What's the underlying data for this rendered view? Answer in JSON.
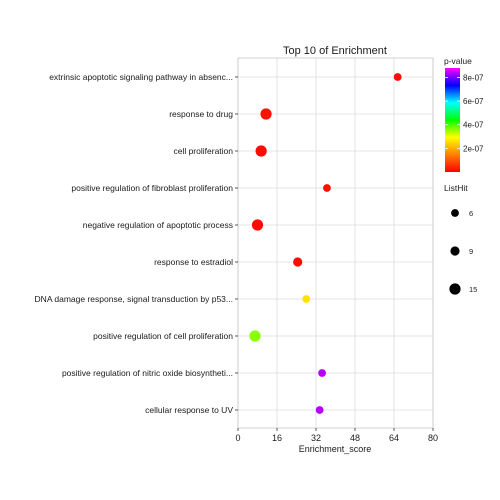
{
  "chart_data": {
    "type": "scatter",
    "title": "Top 10 of  Enrichment",
    "xlabel": "Enrichment_score",
    "ylabel": "",
    "xlim": [
      0,
      80
    ],
    "xticks": [
      0,
      16,
      32,
      48,
      64,
      80
    ],
    "grid": true,
    "categories": [
      "extrinsic apoptotic signaling pathway in absenc...",
      "response to drug",
      "cell proliferation",
      "positive regulation of fibroblast proliferation",
      "negative regulation of apoptotic process",
      "response to estradiol",
      "DNA damage response, signal transduction by p53...",
      "positive regulation of cell proliferation",
      "positive regulation of nitric oxide biosyntheti...",
      "cellular response to UV"
    ],
    "points": [
      {
        "x": 65.5,
        "p_value": 1e-08,
        "list_hit": 6
      },
      {
        "x": 11.5,
        "p_value": 2e-08,
        "list_hit": 15
      },
      {
        "x": 9.5,
        "p_value": 1e-08,
        "list_hit": 15
      },
      {
        "x": 36.5,
        "p_value": 2e-08,
        "list_hit": 6
      },
      {
        "x": 8.0,
        "p_value": 1e-08,
        "list_hit": 15
      },
      {
        "x": 24.5,
        "p_value": 1e-08,
        "list_hit": 9
      },
      {
        "x": 28.0,
        "p_value": 2.6e-07,
        "list_hit": 6
      },
      {
        "x": 7.0,
        "p_value": 3.6e-07,
        "list_hit": 15
      },
      {
        "x": 34.5,
        "p_value": 8.4e-07,
        "list_hit": 6
      },
      {
        "x": 33.5,
        "p_value": 8.4e-07,
        "list_hit": 6
      }
    ],
    "colorbar": {
      "title": "p-value",
      "min": 0,
      "max": 8.8e-07,
      "ticks": [
        {
          "value": 2e-07,
          "label": "2e-07"
        },
        {
          "value": 4e-07,
          "label": "4e-07"
        },
        {
          "value": 6e-07,
          "label": "6e-07"
        },
        {
          "value": 8e-07,
          "label": "8e-07"
        }
      ],
      "colors": [
        "#ff0000",
        "#ff7f00",
        "#ffff00",
        "#00ff00",
        "#00ffff",
        "#0000ff",
        "#ff00ff"
      ]
    },
    "size_legend": {
      "title": "ListHit",
      "entries": [
        {
          "value": 6,
          "label": "6"
        },
        {
          "value": 9,
          "label": "9"
        },
        {
          "value": 15,
          "label": "15"
        }
      ]
    }
  }
}
